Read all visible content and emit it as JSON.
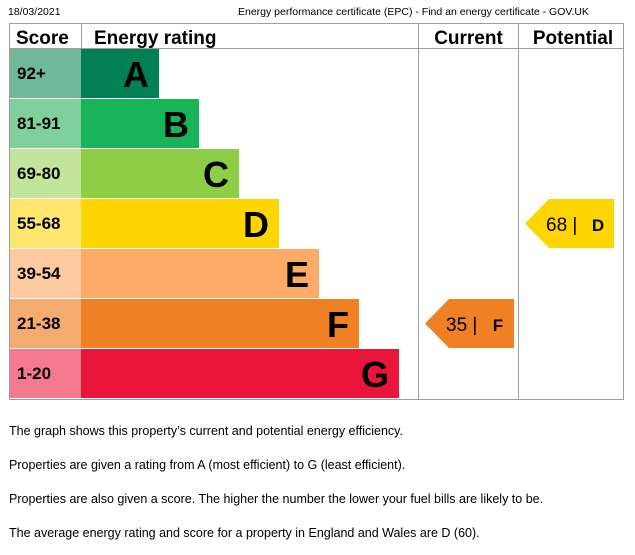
{
  "header": {
    "date": "18/03/2021",
    "page_title": "Energy performance certificate (EPC) - Find an energy certificate - GOV.UK"
  },
  "chart_data": {
    "type": "bar",
    "column_headers": {
      "score": "Score",
      "rating": "Energy rating",
      "current": "Current",
      "potential": "Potential"
    },
    "bands": [
      {
        "letter": "A",
        "range": "92+",
        "color": "#008054",
        "score_bg": "#6fb89a"
      },
      {
        "letter": "B",
        "range": "81-91",
        "color": "#19b459",
        "score_bg": "#7fd09c"
      },
      {
        "letter": "C",
        "range": "69-80",
        "color": "#8dce46",
        "score_bg": "#c3e49b"
      },
      {
        "letter": "D",
        "range": "55-68",
        "color": "#ffd500",
        "score_bg": "#ffe66f"
      },
      {
        "letter": "E",
        "range": "39-54",
        "color": "#fcaa65",
        "score_bg": "#fdcaa0"
      },
      {
        "letter": "F",
        "range": "21-38",
        "color": "#ef8023",
        "score_bg": "#f5aa70"
      },
      {
        "letter": "G",
        "range": "1-20",
        "color": "#e9153b",
        "score_bg": "#f2798f"
      }
    ],
    "current": {
      "score": 35,
      "band": "F",
      "label": "35 |",
      "color": "#ef8023"
    },
    "potential": {
      "score": 68,
      "band": "D",
      "label": "68 |",
      "color": "#ffd500"
    }
  },
  "paragraphs": [
    "The graph shows this property’s current and potential energy efficiency.",
    "Properties are given a rating from A (most efficient) to G (least efficient).",
    "Properties are also given a score. The higher the number the lower your fuel bills are likely to be.",
    "The average energy rating and score for a property in England and Wales are D (60)."
  ]
}
